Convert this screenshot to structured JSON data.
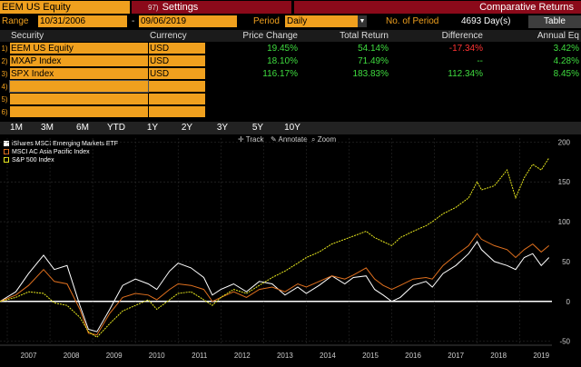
{
  "header": {
    "security": "EEM US Equity",
    "settings_number": "97)",
    "settings_label": "Settings",
    "title": "Comparative Returns"
  },
  "range": {
    "range_label": "Range",
    "start_date": "10/31/2006",
    "dash": "-",
    "end_date": "09/06/2019",
    "period_label": "Period",
    "period_value": "Daily",
    "num_period_label": "No. of Period",
    "num_period_value": "4693 Day(s)",
    "table_button": "Table"
  },
  "table": {
    "headers": [
      "Security",
      "Currency",
      "Price Change",
      "Total Return",
      "Difference",
      "Annual Eq"
    ],
    "rows": [
      {
        "idx": "1)",
        "security": "EEM US Equity",
        "currency": "USD",
        "price_change": "19.45%",
        "total_return": "54.14%",
        "difference": "-17.34%",
        "annual": "3.42%"
      },
      {
        "idx": "2)",
        "security": "MXAP Index",
        "currency": "USD",
        "price_change": "18.10%",
        "total_return": "71.49%",
        "difference": "--",
        "annual": "4.28%"
      },
      {
        "idx": "3)",
        "security": "SPX Index",
        "currency": "USD",
        "price_change": "116.17%",
        "total_return": "183.83%",
        "difference": "112.34%",
        "annual": "8.45%"
      },
      {
        "idx": "4)",
        "security": "",
        "currency": "",
        "price_change": "",
        "total_return": "",
        "difference": "",
        "annual": ""
      },
      {
        "idx": "5)",
        "security": "",
        "currency": "",
        "price_change": "",
        "total_return": "",
        "difference": "",
        "annual": ""
      },
      {
        "idx": "6)",
        "security": "",
        "currency": "",
        "price_change": "",
        "total_return": "",
        "difference": "",
        "annual": ""
      }
    ]
  },
  "periods": [
    "1M",
    "3M",
    "6M",
    "YTD",
    "1Y",
    "2Y",
    "3Y",
    "5Y",
    "10Y"
  ],
  "chart_tools": {
    "track": "Track",
    "annotate": "Annotate",
    "zoom": "Zoom"
  },
  "colors": {
    "orange": "#f0a01e",
    "maroon": "#8b0a1a",
    "eem": "#ffffff",
    "mxap": "#e0701e",
    "spx": "#e8e81e"
  },
  "chart_data": {
    "type": "line",
    "x_labels": [
      "2007",
      "2008",
      "2009",
      "2010",
      "2011",
      "2012",
      "2013",
      "2014",
      "2015",
      "2016",
      "2017",
      "2018",
      "2019"
    ],
    "y_ticks": [
      -50,
      0,
      50,
      100,
      150,
      200
    ],
    "ylim": [
      -55,
      205
    ],
    "series": [
      {
        "name": "iShares MSCI Emerging Markets ETF",
        "color": "#ffffff",
        "points": [
          [
            2006.83,
            0
          ],
          [
            2007.2,
            12
          ],
          [
            2007.5,
            35
          ],
          [
            2007.85,
            58
          ],
          [
            2008.1,
            40
          ],
          [
            2008.4,
            45
          ],
          [
            2008.7,
            -5
          ],
          [
            2008.9,
            -35
          ],
          [
            2009.1,
            -38
          ],
          [
            2009.4,
            -10
          ],
          [
            2009.7,
            20
          ],
          [
            2010.0,
            28
          ],
          [
            2010.3,
            22
          ],
          [
            2010.5,
            15
          ],
          [
            2010.8,
            38
          ],
          [
            2011.0,
            48
          ],
          [
            2011.3,
            42
          ],
          [
            2011.6,
            30
          ],
          [
            2011.8,
            8
          ],
          [
            2012.0,
            15
          ],
          [
            2012.3,
            22
          ],
          [
            2012.6,
            12
          ],
          [
            2012.9,
            25
          ],
          [
            2013.2,
            22
          ],
          [
            2013.5,
            8
          ],
          [
            2013.8,
            18
          ],
          [
            2014.0,
            10
          ],
          [
            2014.3,
            20
          ],
          [
            2014.6,
            32
          ],
          [
            2014.9,
            22
          ],
          [
            2015.1,
            30
          ],
          [
            2015.4,
            32
          ],
          [
            2015.6,
            15
          ],
          [
            2015.8,
            8
          ],
          [
            2016.0,
            0
          ],
          [
            2016.2,
            5
          ],
          [
            2016.5,
            20
          ],
          [
            2016.8,
            25
          ],
          [
            2016.95,
            18
          ],
          [
            2017.2,
            35
          ],
          [
            2017.5,
            45
          ],
          [
            2017.8,
            60
          ],
          [
            2018.0,
            75
          ],
          [
            2018.1,
            65
          ],
          [
            2018.4,
            50
          ],
          [
            2018.7,
            45
          ],
          [
            2018.9,
            40
          ],
          [
            2019.1,
            55
          ],
          [
            2019.3,
            60
          ],
          [
            2019.5,
            45
          ],
          [
            2019.68,
            55
          ]
        ]
      },
      {
        "name": "MSCI AC Asia Pacific Index",
        "color": "#e0701e",
        "points": [
          [
            2006.83,
            0
          ],
          [
            2007.2,
            8
          ],
          [
            2007.5,
            20
          ],
          [
            2007.85,
            40
          ],
          [
            2008.1,
            25
          ],
          [
            2008.4,
            22
          ],
          [
            2008.7,
            -10
          ],
          [
            2008.9,
            -40
          ],
          [
            2009.1,
            -42
          ],
          [
            2009.4,
            -15
          ],
          [
            2009.7,
            5
          ],
          [
            2010.0,
            10
          ],
          [
            2010.3,
            8
          ],
          [
            2010.5,
            2
          ],
          [
            2010.8,
            15
          ],
          [
            2011.0,
            22
          ],
          [
            2011.3,
            20
          ],
          [
            2011.6,
            15
          ],
          [
            2011.8,
            0
          ],
          [
            2012.0,
            5
          ],
          [
            2012.3,
            12
          ],
          [
            2012.6,
            5
          ],
          [
            2012.9,
            15
          ],
          [
            2013.2,
            18
          ],
          [
            2013.5,
            12
          ],
          [
            2013.8,
            22
          ],
          [
            2014.0,
            18
          ],
          [
            2014.3,
            25
          ],
          [
            2014.6,
            32
          ],
          [
            2014.9,
            28
          ],
          [
            2015.1,
            33
          ],
          [
            2015.4,
            42
          ],
          [
            2015.6,
            28
          ],
          [
            2015.8,
            20
          ],
          [
            2016.0,
            15
          ],
          [
            2016.2,
            20
          ],
          [
            2016.5,
            28
          ],
          [
            2016.8,
            30
          ],
          [
            2016.95,
            28
          ],
          [
            2017.2,
            45
          ],
          [
            2017.5,
            58
          ],
          [
            2017.8,
            70
          ],
          [
            2018.0,
            85
          ],
          [
            2018.1,
            78
          ],
          [
            2018.4,
            70
          ],
          [
            2018.7,
            65
          ],
          [
            2018.9,
            55
          ],
          [
            2019.1,
            65
          ],
          [
            2019.3,
            72
          ],
          [
            2019.5,
            62
          ],
          [
            2019.68,
            70
          ]
        ]
      },
      {
        "name": "S&P 500 Index",
        "color": "#e8e81e",
        "points": [
          [
            2006.83,
            0
          ],
          [
            2007.2,
            5
          ],
          [
            2007.5,
            12
          ],
          [
            2007.85,
            10
          ],
          [
            2008.1,
            -2
          ],
          [
            2008.4,
            -5
          ],
          [
            2008.7,
            -20
          ],
          [
            2008.9,
            -38
          ],
          [
            2009.1,
            -45
          ],
          [
            2009.4,
            -28
          ],
          [
            2009.7,
            -12
          ],
          [
            2010.0,
            -5
          ],
          [
            2010.3,
            2
          ],
          [
            2010.5,
            -10
          ],
          [
            2010.8,
            2
          ],
          [
            2011.0,
            10
          ],
          [
            2011.3,
            12
          ],
          [
            2011.6,
            2
          ],
          [
            2011.8,
            -5
          ],
          [
            2012.0,
            5
          ],
          [
            2012.3,
            15
          ],
          [
            2012.6,
            10
          ],
          [
            2012.9,
            20
          ],
          [
            2013.2,
            30
          ],
          [
            2013.5,
            38
          ],
          [
            2013.8,
            48
          ],
          [
            2014.0,
            55
          ],
          [
            2014.3,
            62
          ],
          [
            2014.6,
            72
          ],
          [
            2014.9,
            78
          ],
          [
            2015.1,
            82
          ],
          [
            2015.4,
            88
          ],
          [
            2015.6,
            80
          ],
          [
            2015.8,
            75
          ],
          [
            2016.0,
            70
          ],
          [
            2016.2,
            80
          ],
          [
            2016.5,
            88
          ],
          [
            2016.8,
            95
          ],
          [
            2016.95,
            100
          ],
          [
            2017.2,
            110
          ],
          [
            2017.5,
            118
          ],
          [
            2017.8,
            130
          ],
          [
            2018.0,
            150
          ],
          [
            2018.1,
            140
          ],
          [
            2018.4,
            145
          ],
          [
            2018.7,
            165
          ],
          [
            2018.9,
            130
          ],
          [
            2019.1,
            155
          ],
          [
            2019.3,
            172
          ],
          [
            2019.5,
            165
          ],
          [
            2019.68,
            180
          ]
        ]
      }
    ]
  }
}
